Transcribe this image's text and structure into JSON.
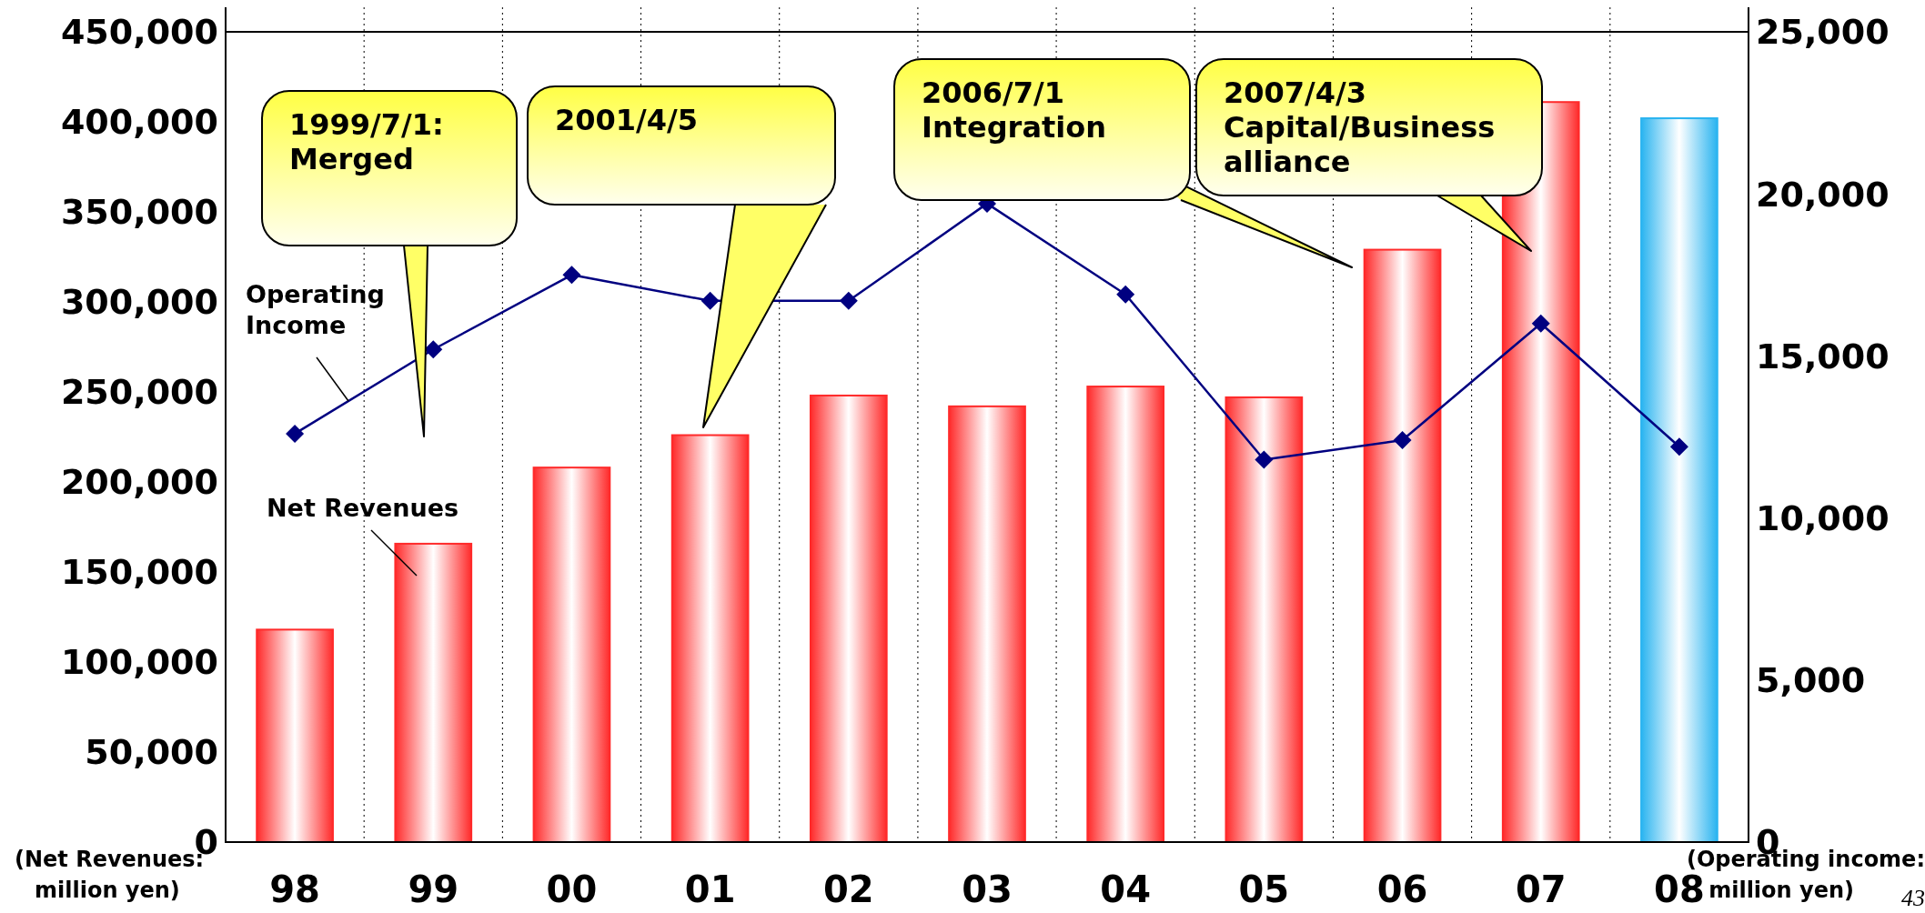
{
  "chart_data": {
    "type": "bar",
    "categories": [
      "98",
      "99",
      "00",
      "01",
      "02",
      "03",
      "04",
      "05",
      "06",
      "07",
      "08"
    ],
    "series": [
      {
        "name": "Net Revenues",
        "colors": [
          "#ff2a2a",
          "#ff2a2a",
          "#ff2a2a",
          "#ff2a2a",
          "#ff2a2a",
          "#ff2a2a",
          "#ff2a2a",
          "#ff2a2a",
          "#ff2a2a",
          "#ff2a2a",
          "#2ab4f0"
        ],
        "values": [
          118000,
          165700,
          208000,
          226000,
          248000,
          242000,
          253000,
          247000,
          329000,
          411000,
          402000
        ]
      },
      {
        "name": "Operating Income",
        "type": "line",
        "axis": "y2",
        "color": "#000080",
        "marker": "diamond",
        "values": [
          12600,
          15200,
          17500,
          16700,
          16700,
          19700,
          16900,
          11800,
          12400,
          16000,
          12200
        ]
      }
    ],
    "ylim": [
      0,
      450000
    ],
    "yticks": [
      {
        "value": 0,
        "label": "0"
      },
      {
        "value": 50000,
        "label": "50,000"
      },
      {
        "value": 100000,
        "label": "100,000"
      },
      {
        "value": 150000,
        "label": "150,000"
      },
      {
        "value": 200000,
        "label": "200,000"
      },
      {
        "value": 250000,
        "label": "250,000"
      },
      {
        "value": 300000,
        "label": "300,000"
      },
      {
        "value": 350000,
        "label": "350,000"
      },
      {
        "value": 400000,
        "label": "400,000"
      },
      {
        "value": 450000,
        "label": "450,000"
      }
    ],
    "y2lim": [
      0,
      25000
    ],
    "y2ticks": [
      {
        "value": 0,
        "label": "0"
      },
      {
        "value": 5000,
        "label": "5,000"
      },
      {
        "value": 10000,
        "label": "10,000"
      },
      {
        "value": 15000,
        "label": "15,000"
      },
      {
        "value": 20000,
        "label": "20,000"
      },
      {
        "value": 25000,
        "label": "25,000"
      }
    ],
    "ylabel": "(Net Revenues: million yen)",
    "y2label": "(Operating income: million yen)",
    "grid": "x",
    "legend": false,
    "annotations": [
      "1999/7/1: Merged",
      "2001/4/5",
      "2006/7/1 Integration",
      "2007/4/3 Capital/Business alliance",
      "43"
    ]
  }
}
